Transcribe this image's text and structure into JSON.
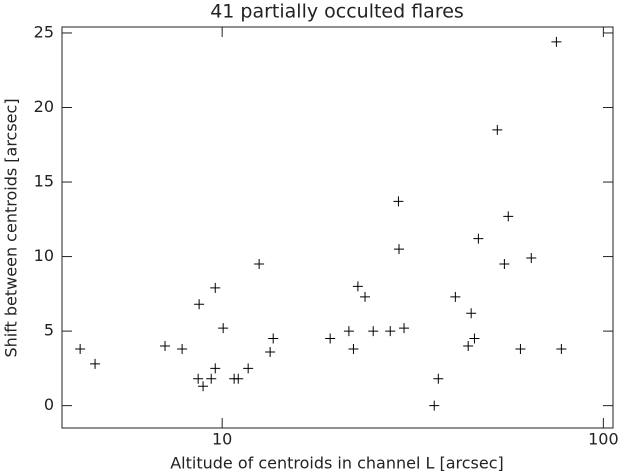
{
  "chart_data": {
    "type": "scatter",
    "title": "41 partially occulted flares",
    "x_label": "Altitude of centroids in channel L [arcsec]",
    "y_label": "Shift between centroids [arcsec]",
    "x_scale": "log",
    "xlim": [
      3.8,
      106
    ],
    "ylim": [
      -1.5,
      25.4
    ],
    "xticks": [
      10,
      100
    ],
    "yticks": [
      0,
      5,
      10,
      15,
      20,
      25
    ],
    "color": "#000000",
    "x": [
      4.24,
      4.64,
      7.08,
      7.85,
      8.7,
      8.65,
      8.91,
      9.36,
      9.59,
      9.59,
      10.06,
      10.75,
      11.02,
      11.7,
      12.5,
      13.36,
      13.61,
      19.2,
      21.5,
      22.1,
      24.9,
      22.7,
      23.7,
      27.6,
      29.0,
      29.1,
      30.0,
      36.0,
      36.9,
      40.9,
      44.2,
      45.0,
      45.9,
      47.0,
      52.7,
      55.0,
      56.3,
      60.6,
      64.7,
      75.3,
      77.6
    ],
    "values": [
      3.8,
      2.8,
      4.0,
      3.8,
      6.8,
      1.8,
      1.3,
      1.8,
      7.9,
      2.5,
      5.2,
      1.8,
      1.8,
      2.5,
      9.5,
      3.6,
      4.5,
      4.5,
      5.0,
      3.8,
      5.0,
      8.0,
      7.3,
      5.0,
      13.7,
      10.5,
      5.2,
      0.0,
      1.8,
      7.3,
      4.0,
      6.2,
      4.5,
      11.2,
      18.5,
      9.5,
      12.7,
      3.8,
      9.9,
      24.4,
      3.8
    ]
  }
}
